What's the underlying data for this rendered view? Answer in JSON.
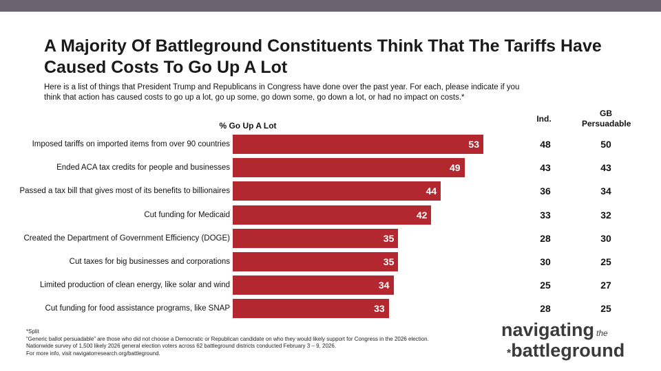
{
  "title": "A Majority Of Battleground Constituents Think That The Tariffs Have Caused Costs To Go Up A Lot",
  "subtitle": "Here is a list of things that President Trump and Republicans in Congress have done over the past year. For each, please indicate if you think that action has caused costs to go up a lot, go up some, go down some, go down a lot, or had no impact on costs.*",
  "colors": {
    "bar": "#b2282e",
    "topbar": "#6b6470"
  },
  "chart_data": {
    "type": "bar",
    "orientation": "horizontal",
    "title": "% Go Up A Lot",
    "xlim": [
      0,
      100
    ],
    "categories": [
      "Imposed tariffs on imported items from over 90 countries",
      "Ended ACA tax credits for people and businesses",
      "Passed a tax bill that gives most of its benefits to billionaires",
      "Cut funding for Medicaid",
      "Created the Department of Government Efficiency (DOGE)",
      "Cut taxes for big businesses and corporations",
      "Limited production of clean energy, like solar and wind",
      "Cut funding for food assistance programs, like SNAP"
    ],
    "values": [
      53,
      49,
      44,
      42,
      35,
      35,
      34,
      33
    ],
    "columns": [
      {
        "name": "Ind.",
        "values": [
          48,
          43,
          36,
          33,
          28,
          30,
          25,
          28
        ]
      },
      {
        "name": "GB Persuadable",
        "values": [
          50,
          43,
          34,
          32,
          30,
          25,
          27,
          25
        ]
      }
    ]
  },
  "footnotes": [
    "*Split",
    "“Generic ballot persuadable” are those who did not choose a Democratic or Republican candidate on who they would likely support for Congress in the 2026 election.",
    "Nationwide survey of 1,500 likely 2026 general election voters across 62 battleground districts conducted February 3 – 9, 2026.",
    "For more info, visit navigatorresearch.org/battleground."
  ],
  "logo": {
    "line1": "navigating",
    "small": "the",
    "line2": "battleground"
  }
}
